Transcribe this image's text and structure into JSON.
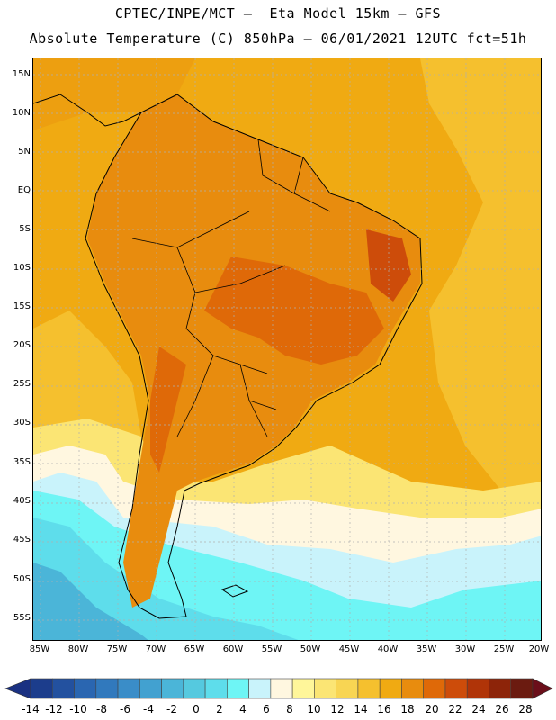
{
  "header": {
    "line1": "CPTEC/INPE/MCT –  Eta Model 15km – GFS",
    "line2": "Absolute Temperature (C) 850hPa – 06/01/2021 12UTC fct=51h"
  },
  "map": {
    "lat_labels": [
      "15N",
      "10N",
      "5N",
      "EQ",
      "5S",
      "10S",
      "15S",
      "20S",
      "25S",
      "30S",
      "35S",
      "40S",
      "45S",
      "50S",
      "55S"
    ],
    "lon_labels": [
      "85W",
      "80W",
      "75W",
      "70W",
      "65W",
      "60W",
      "55W",
      "50W",
      "45W",
      "40W",
      "35W",
      "30W",
      "25W",
      "20W"
    ]
  },
  "colorbar": {
    "labels": [
      "-14",
      "-12",
      "-10",
      "-8",
      "-6",
      "-4",
      "-2",
      "0",
      "2",
      "4",
      "6",
      "8",
      "10",
      "12",
      "14",
      "16",
      "18",
      "20",
      "22",
      "24",
      "26",
      "28"
    ],
    "colors": [
      "#1c3d8c",
      "#23519f",
      "#2a66b1",
      "#3179bd",
      "#3a8dc8",
      "#42a1d0",
      "#4bb5d8",
      "#55c9df",
      "#5eddeb",
      "#6ef5f5",
      "#c9f3fb",
      "#fff7e0",
      "#fff69a",
      "#fbe574",
      "#f8d553",
      "#f5c02e",
      "#f0aa12",
      "#e88c0e",
      "#df6908",
      "#cd4c0a",
      "#b03408",
      "#8d2409",
      "#6b1b10"
    ],
    "under_color": "#1a3182",
    "over_color": "#6b0f1a"
  },
  "colors": {
    "ocean_warm": "#f0aa12",
    "land_hot": "#e88c0e",
    "land_hotter": "#df6908",
    "cold_ocean": "#5eddeb",
    "coast": "#000000"
  }
}
